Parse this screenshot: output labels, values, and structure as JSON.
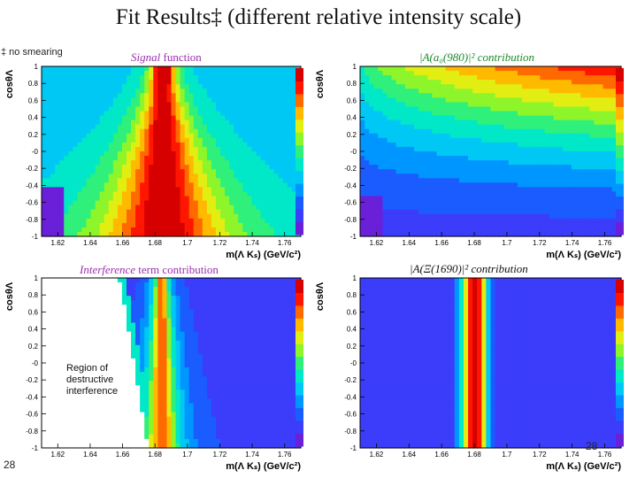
{
  "slide": {
    "title": "Fit Results‡ (different relative intensity scale)",
    "footnote": "‡ no smearing",
    "page_number_left": "28",
    "page_number_right": "28",
    "annotation": [
      "Region of",
      "destructive",
      "interference"
    ]
  },
  "panel_labels": {
    "signal": {
      "italic": "Signal",
      "rest": " function"
    },
    "a0": {
      "text": "|A(a₀(980)|² contribution"
    },
    "interference": {
      "italic": "Interference",
      "rest": " term contribution"
    },
    "xi": {
      "text": "|A(Ξ(1690)|² contribution"
    }
  },
  "chart_data": [
    {
      "type": "heatmap",
      "name": "signal-function",
      "xlabel": "m(Λ Kₛ)  (GeV/c²)",
      "ylabel": "cosθΛ",
      "xlim": [
        1.61,
        1.77
      ],
      "ylim": [
        -1,
        1
      ],
      "x_ticks": [
        "1.62",
        "1.64",
        "1.66",
        "1.68",
        "1.7",
        "1.72",
        "1.74",
        "1.76"
      ],
      "y_ticks": [
        "-1",
        "-0.8",
        "-0.6",
        "-0.4",
        "-0.2",
        "-0",
        "0.2",
        "0.4",
        "0.6",
        "0.8",
        "1"
      ],
      "description_peak_mass": 1.685
    },
    {
      "type": "heatmap",
      "name": "a0-980-contribution",
      "xlabel": "m(Λ Kₛ)  (GeV/c²)",
      "ylabel": "cosθΛ",
      "xlim": [
        1.61,
        1.77
      ],
      "ylim": [
        -1,
        1
      ],
      "x_ticks": [
        "1.62",
        "1.64",
        "1.66",
        "1.68",
        "1.7",
        "1.72",
        "1.74",
        "1.76"
      ],
      "y_ticks": [
        "-1",
        "-0.8",
        "-0.6",
        "-0.4",
        "-0.2",
        "-0",
        "0.2",
        "0.4",
        "0.6",
        "0.8",
        "1"
      ]
    },
    {
      "type": "heatmap",
      "name": "interference-term",
      "xlabel": "m(Λ Kₛ)  (GeV/c²)",
      "ylabel": "cosθΛ",
      "xlim": [
        1.61,
        1.77
      ],
      "ylim": [
        -1,
        1
      ],
      "x_ticks": [
        "1.62",
        "1.64",
        "1.66",
        "1.68",
        "1.7",
        "1.72",
        "1.74",
        "1.76"
      ],
      "y_ticks": [
        "-1",
        "-0.8",
        "-0.6",
        "-0.4",
        "-0.2",
        "-0",
        "0.2",
        "0.4",
        "0.6",
        "0.8",
        "1"
      ]
    },
    {
      "type": "heatmap",
      "name": "xi-1690-contribution",
      "xlabel": "m(Λ Kₛ)  (GeV/c²)",
      "ylabel": "cosθΛ",
      "xlim": [
        1.61,
        1.77
      ],
      "ylim": [
        -1,
        1
      ],
      "x_ticks": [
        "1.62",
        "1.64",
        "1.66",
        "1.68",
        "1.7",
        "1.72",
        "1.74",
        "1.76"
      ],
      "y_ticks": [
        "-1",
        "-0.8",
        "-0.6",
        "-0.4",
        "-0.2",
        "-0",
        "0.2",
        "0.4",
        "0.6",
        "0.8",
        "1"
      ],
      "description_peak_mass": 1.68
    }
  ],
  "colors": {
    "palette": [
      "#6a1fd8",
      "#3b3dfa",
      "#1b5cff",
      "#0096ff",
      "#00c8f5",
      "#00e8c8",
      "#2ef07a",
      "#8ef52a",
      "#e2ee12",
      "#ffba00",
      "#ff6a00",
      "#ff1600",
      "#d60000"
    ]
  }
}
